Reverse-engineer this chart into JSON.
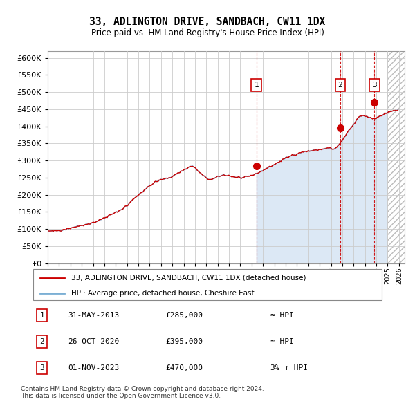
{
  "title": "33, ADLINGTON DRIVE, SANDBACH, CW11 1DX",
  "subtitle": "Price paid vs. HM Land Registry's House Price Index (HPI)",
  "ylim": [
    0,
    620000
  ],
  "yticks": [
    0,
    50000,
    100000,
    150000,
    200000,
    250000,
    300000,
    350000,
    400000,
    450000,
    500000,
    550000,
    600000
  ],
  "xlim_start": 1995.0,
  "xlim_end": 2026.5,
  "sale_years": [
    2013.415,
    2020.814,
    2023.832
  ],
  "sale_prices": [
    285000,
    395000,
    470000
  ],
  "sale_labels": [
    "1",
    "2",
    "3"
  ],
  "legend_line1": "33, ADLINGTON DRIVE, SANDBACH, CW11 1DX (detached house)",
  "legend_line2": "HPI: Average price, detached house, Cheshire East",
  "table_data": [
    {
      "num": "1",
      "date": "31-MAY-2013",
      "price": "£285,000",
      "note": "≈ HPI"
    },
    {
      "num": "2",
      "date": "26-OCT-2020",
      "price": "£395,000",
      "note": "≈ HPI"
    },
    {
      "num": "3",
      "date": "01-NOV-2023",
      "price": "£470,000",
      "note": "3% ↑ HPI"
    }
  ],
  "footer": "Contains HM Land Registry data © Crown copyright and database right 2024.\nThis data is licensed under the Open Government Licence v3.0.",
  "hpi_line_color": "#7bafd4",
  "price_line_color": "#cc0000",
  "sale_marker_color": "#cc0000",
  "dashed_line_color": "#cc0000",
  "background_chart": "#ffffff",
  "grid_color": "#cccccc",
  "hpi_fill_color": "#dce8f5",
  "hatch_fill_color": "#eeeeee"
}
